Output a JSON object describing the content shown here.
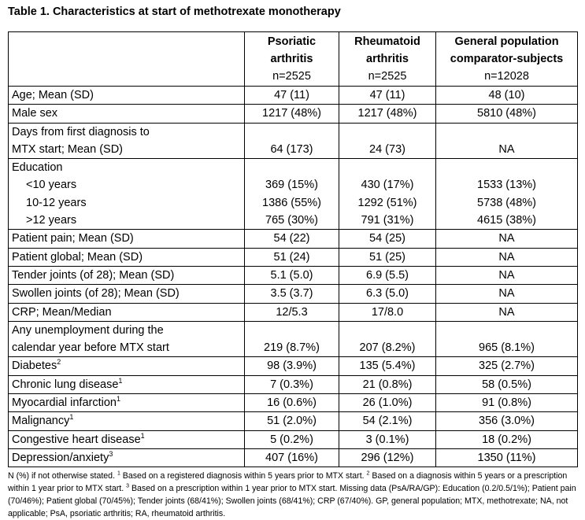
{
  "title": "Table 1. Characteristics at start of methotrexate monotherapy",
  "columns": [
    {
      "name": [
        "Psoriatic",
        "arthritis"
      ],
      "n": "n=2525"
    },
    {
      "name": [
        "Rheumatoid",
        "arthritis"
      ],
      "n": "n=2525"
    },
    {
      "name": [
        "General population",
        "comparator-subjects"
      ],
      "n": "n=12028"
    }
  ],
  "rows": [
    {
      "label": [
        "Age; Mean (SD)"
      ],
      "values": [
        "47 (11)",
        "47 (11)",
        "48 (10)"
      ]
    },
    {
      "label": [
        "Male sex"
      ],
      "values": [
        "1217 (48%)",
        "1217 (48%)",
        "5810 (48%)"
      ]
    },
    {
      "label": [
        "Days from first diagnosis to",
        "MTX start; Mean (SD)"
      ],
      "values": [
        "64 (173)",
        "24 (73)",
        "NA"
      ]
    },
    {
      "label": [
        "Education"
      ],
      "subrows": [
        {
          "label": "<10 years",
          "values": [
            "369 (15%)",
            "430 (17%)",
            "1533 (13%)"
          ]
        },
        {
          "label": "10-12 years",
          "values": [
            "1386 (55%)",
            "1292 (51%)",
            "5738 (48%)"
          ]
        },
        {
          "label": ">12 years",
          "values": [
            "765 (30%)",
            "791 (31%)",
            "4615 (38%)"
          ]
        }
      ]
    },
    {
      "label": [
        "Patient pain; Mean (SD)"
      ],
      "values": [
        "54 (22)",
        "54 (25)",
        "NA"
      ]
    },
    {
      "label": [
        "Patient global; Mean (SD)"
      ],
      "values": [
        "51 (24)",
        "51 (25)",
        "NA"
      ]
    },
    {
      "label": [
        "Tender joints (of 28); Mean (SD)"
      ],
      "values": [
        "5.1 (5.0)",
        "6.9 (5.5)",
        "NA"
      ]
    },
    {
      "label": [
        "Swollen joints (of 28); Mean (SD)"
      ],
      "values": [
        "3.5 (3.7)",
        "6.3 (5.0)",
        "NA"
      ]
    },
    {
      "label": [
        "CRP; Mean/Median"
      ],
      "values": [
        "12/5.3",
        "17/8.0",
        "NA"
      ]
    },
    {
      "label": [
        "Any unemployment during the",
        "calendar year before MTX start"
      ],
      "values": [
        "219 (8.7%)",
        "207 (8.2%)",
        "965 (8.1%)"
      ]
    },
    {
      "label": [
        "Diabetes"
      ],
      "sup": "2",
      "values": [
        "98 (3.9%)",
        "135 (5.4%)",
        "325 (2.7%)"
      ]
    },
    {
      "label": [
        "Chronic lung disease"
      ],
      "sup": "1",
      "values": [
        "7 (0.3%)",
        "21 (0.8%)",
        "58 (0.5%)"
      ]
    },
    {
      "label": [
        "Myocardial infarction"
      ],
      "sup": "1",
      "values": [
        "16 (0.6%)",
        "26 (1.0%)",
        "91 (0.8%)"
      ]
    },
    {
      "label": [
        "Malignancy"
      ],
      "sup": "1",
      "values": [
        "51 (2.0%)",
        "54 (2.1%)",
        "356 (3.0%)"
      ]
    },
    {
      "label": [
        "Congestive heart disease"
      ],
      "sup": "1",
      "values": [
        "5 (0.2%)",
        "3 (0.1%)",
        "18 (0.2%)"
      ]
    },
    {
      "label": [
        "Depression/anxiety"
      ],
      "sup": "3",
      "values": [
        "407 (16%)",
        "296 (12%)",
        "1350 (11%)"
      ]
    }
  ],
  "footnote": [
    {
      "text": "N (%) if not otherwise stated. "
    },
    {
      "sup": "1"
    },
    {
      "text": " Based on a registered diagnosis within 5 years prior to MTX start. "
    },
    {
      "sup": "2"
    },
    {
      "text": " Based on a diagnosis within 5 years or a prescription within 1 year prior to MTX start. "
    },
    {
      "sup": "3"
    },
    {
      "text": " Based on a prescription within 1 year prior to MTX start. Missing data (PsA/RA/GP): Education (0.2/0.5/1%); Patient pain (70/46%); Patient global (70/45%); Tender joints (68/41%); Swollen joints (68/41%); CRP (67/40%). GP, general population; MTX, methotrexate; NA, not applicable; PsA, psoriatic arthritis; RA, rheumatoid arthritis."
    }
  ]
}
